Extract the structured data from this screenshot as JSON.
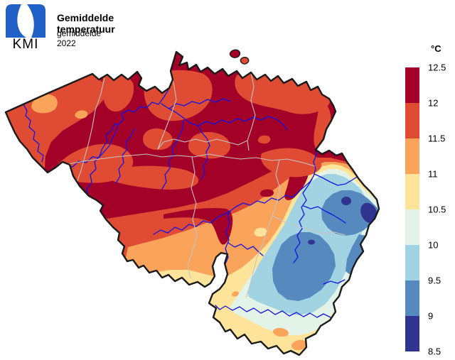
{
  "header": {
    "logo_text": "KMI",
    "title": "Gemiddelde temperatuur",
    "subtitle": "gemiddelde 2022"
  },
  "legend": {
    "unit_label": "°C",
    "tick_labels": [
      "12.5",
      "12",
      "11.5",
      "11",
      "10.5",
      "10",
      "9.5",
      "9",
      "8.5"
    ],
    "band_colors": [
      "#A40129",
      "#E04B33",
      "#FAA35B",
      "#FDE49A",
      "#E4F3E7",
      "#A2D3E3",
      "#5689BE",
      "#30348F"
    ]
  },
  "map_colors": {
    "band_12_0_12_5": "#A40129",
    "band_11_5_12_0": "#E04B33",
    "band_11_0_11_5": "#FAA35B",
    "band_10_5_11_0": "#FDE49A",
    "band_10_0_10_5": "#E4F3E7",
    "band_9_5_10_0": "#A2D3E3",
    "band_9_0_9_5": "#5689BE",
    "band_8_5_9_0": "#30348F",
    "river": "#1414E0",
    "province_border": "#C4C4C4",
    "country_border": "#1A1A1A",
    "logo_blue": "#2160C6",
    "background": "#FFFFFF"
  }
}
